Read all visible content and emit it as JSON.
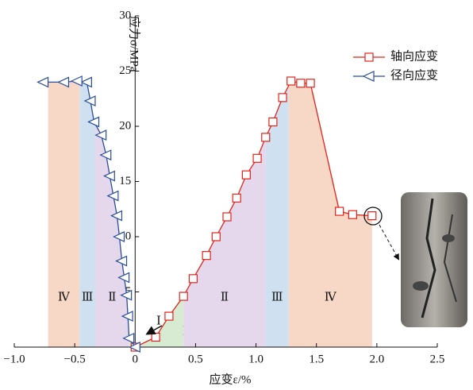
{
  "chart_data": {
    "type": "line",
    "ylabel": "应力σ/MPa",
    "xlabel": "应变ε/%",
    "xlim": [
      -1.0,
      2.5
    ],
    "ylim": [
      0,
      30
    ],
    "xticks": [
      {
        "value": -1.0,
        "label": "−1.0"
      },
      {
        "value": -0.5,
        "label": "−0.5"
      },
      0,
      0.5,
      {
        "value": 1.0,
        "label": "1.0"
      },
      1.5,
      {
        "value": 2.0,
        "label": "2.0"
      },
      2.5
    ],
    "yticks": [
      5,
      10,
      15,
      20,
      25,
      30
    ],
    "legend": "upper right",
    "series": [
      {
        "name": "轴向应变",
        "color": "#e2231a",
        "marker": "square",
        "x": [
          0,
          0.17,
          0.28,
          0.4,
          0.48,
          0.59,
          0.67,
          0.76,
          0.84,
          0.92,
          1.01,
          1.08,
          1.14,
          1.22,
          1.29,
          1.37,
          1.45,
          1.69,
          1.8,
          1.96
        ],
        "values": [
          0,
          0.9,
          2.8,
          4.6,
          6.2,
          8.3,
          10.0,
          11.8,
          13.5,
          15.6,
          17.1,
          19.0,
          20.4,
          22.6,
          24.1,
          23.9,
          23.9,
          12.3,
          12.0,
          11.9
        ]
      },
      {
        "name": "径向应变",
        "color": "#2a4d9b",
        "marker": "triangle-left",
        "x": [
          0,
          -0.05,
          -0.06,
          -0.07,
          -0.09,
          -0.11,
          -0.13,
          -0.15,
          -0.18,
          -0.21,
          -0.24,
          -0.28,
          -0.34,
          -0.37,
          -0.4,
          -0.48,
          -0.59,
          -0.76
        ],
        "values": [
          0,
          0.8,
          2.8,
          4.7,
          6.3,
          7.8,
          10.0,
          11.9,
          13.7,
          15.5,
          17.4,
          19.2,
          20.4,
          22.3,
          24.0,
          24.1,
          24.0,
          24.0
        ]
      }
    ],
    "regions": [
      {
        "series": 0,
        "label": "Ⅰ",
        "x": [
          0,
          0.4
        ],
        "color": "#d6ebd2"
      },
      {
        "series": 0,
        "label": "Ⅱ",
        "x": [
          0.4,
          1.08
        ],
        "color": "#e6d8ec"
      },
      {
        "series": 0,
        "label": "Ⅲ",
        "x": [
          1.08,
          1.27
        ],
        "color": "#cfe1f1"
      },
      {
        "series": 0,
        "label": "Ⅳ",
        "x": [
          1.27,
          1.96
        ],
        "color": "#f7d7c6"
      },
      {
        "series": 1,
        "label": "Ⅰ",
        "x": [
          -0.05,
          0
        ],
        "color": "#d6ebd2"
      },
      {
        "series": 1,
        "label": "Ⅱ",
        "x": [
          -0.33,
          -0.05
        ],
        "color": "#e6d8ec"
      },
      {
        "series": 1,
        "label": "Ⅲ",
        "x": [
          -0.46,
          -0.33
        ],
        "color": "#cfe1f1"
      },
      {
        "series": 1,
        "label": "Ⅳ",
        "x": [
          -0.72,
          -0.46
        ],
        "color": "#f7d7c6"
      }
    ]
  }
}
